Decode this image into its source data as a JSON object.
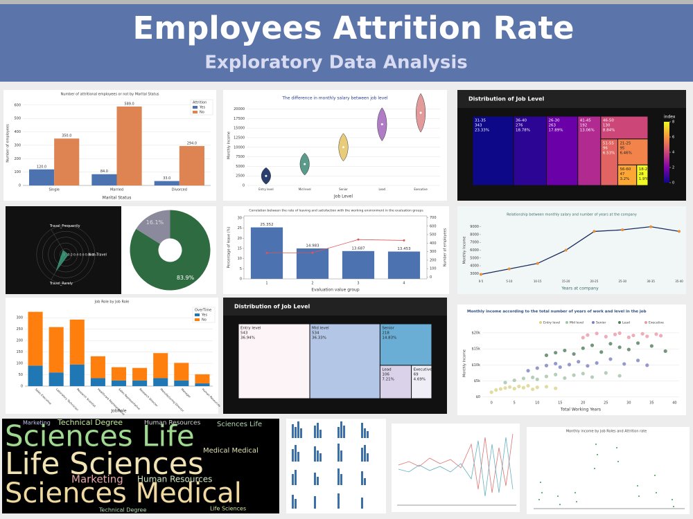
{
  "header": {
    "title": "Employees Attrition Rate",
    "subtitle": "Exploratory Data Analysis"
  },
  "chart_data": [
    {
      "type": "grouped-bar",
      "title": "Number of attritional employees or not by Marital Status",
      "xlabel": "Marital Status",
      "ylabel": "Number of employees",
      "legend_title": "Attrition",
      "categories": [
        "Single",
        "Married",
        "Divorced"
      ],
      "series": [
        {
          "name": "Yes",
          "color": "#4c72b0",
          "values": [
            120,
            84,
            33
          ],
          "value_labels": [
            "120.0",
            "84.0",
            "33.0"
          ]
        },
        {
          "name": "No",
          "color": "#dd8452",
          "values": [
            350,
            589,
            294
          ],
          "value_labels": [
            "350.0",
            "589.0",
            "294.0"
          ]
        }
      ],
      "ylim": [
        0,
        630
      ],
      "yticks": [
        0,
        100,
        200,
        300,
        400,
        500,
        600
      ],
      "grid": true
    },
    {
      "type": "violin",
      "title": "The difference in monthly salary between job level",
      "xlabel": "Job Level",
      "ylabel": "Monthly Income",
      "categories": [
        "Entry level",
        "Mid level",
        "Senior",
        "Lead",
        "Executive"
      ],
      "values": [
        2500,
        5600,
        10000,
        16000,
        19000
      ],
      "colors": [
        "#2a3f6e",
        "#5a9a8a",
        "#e8cc7a",
        "#b07cc6",
        "#e39a9a"
      ],
      "ylim": [
        0,
        21000
      ],
      "yticks": [
        0,
        2500,
        5000,
        7500,
        10000,
        12500,
        15000,
        17500,
        20000
      ],
      "grid": true
    },
    {
      "type": "treemap",
      "title": "Distribution of Job Level",
      "categories": [
        "31-35",
        "36-40",
        "26-30",
        "41-45",
        "46-50",
        "51-55",
        "21-25",
        "56-60",
        "18-20"
      ],
      "values": [
        343,
        276,
        263,
        192,
        130,
        96,
        95,
        47,
        28
      ],
      "value_labels": [
        "23.33%",
        "18.78%",
        "17.89%",
        "13.06%",
        "8.84%",
        "6.53%",
        "6.46%",
        "3.2%",
        "1.9%"
      ],
      "colors": [
        "#0d0887",
        "#2c0594",
        "#6a00a8",
        "#b12a90",
        "#cc4778",
        "#e16462",
        "#f2844b",
        "#fca636",
        "#f0f921"
      ],
      "colorbar_title": "index",
      "clim": [
        0,
        8
      ],
      "cticks": [
        0,
        2,
        4,
        6,
        8
      ]
    },
    {
      "type": "radar",
      "categories": [
        "Non-Travel",
        "Travel_Frequently",
        "Travel_Rarely"
      ],
      "values": [
        0.1,
        0.19,
        0.71
      ],
      "color": "#3aa27f",
      "rlim": [
        0,
        1
      ],
      "rticks": [
        0,
        0.2,
        0.4,
        0.6,
        0.8,
        1
      ]
    },
    {
      "type": "pie",
      "values": [
        83.9,
        16.1
      ],
      "value_labels": [
        "83.9%",
        "16.1%"
      ],
      "colors": [
        "#2f6b40",
        "#8a8a9c"
      ]
    },
    {
      "type": "bar-line",
      "title": "Correlation between the rate of leaving and satisfaction with the working environment in the evaluation groups",
      "xlabel": "Evaluation value group",
      "ylabel": "Percentage of leave (%)",
      "y2label": "Number of employees",
      "categories": [
        "1",
        "2",
        "3",
        "4"
      ],
      "series": [
        {
          "type": "bar",
          "color": "#4c72b0",
          "values": [
            25.352,
            14.983,
            13.687,
            13.453
          ]
        },
        {
          "type": "line",
          "axis": "y2",
          "color": "#e05555",
          "values": [
            284,
            287,
            442,
            432
          ]
        }
      ],
      "ylim": [
        0,
        31
      ],
      "yticks": [
        0,
        5,
        10,
        15,
        20,
        25,
        30
      ],
      "y2lim": [
        -20,
        720
      ],
      "y2ticks": [
        0,
        100,
        200,
        300,
        400,
        500,
        600,
        700
      ]
    },
    {
      "type": "line",
      "title": "Relationship between monthly salary and number of years at the company",
      "xlabel": "Years at company",
      "ylabel": "Monthly Income",
      "categories": [
        "0-5",
        "5-10",
        "10-15",
        "15-20",
        "20-25",
        "25-30",
        "30-35",
        "35-40"
      ],
      "values": [
        2900,
        3600,
        4300,
        6000,
        8400,
        8600,
        9000,
        8400
      ],
      "color": "#1a2a5e",
      "marker_color": "#e69138",
      "ylim": [
        2500,
        9500
      ],
      "yticks": [
        3000,
        4000,
        5000,
        6000,
        7000,
        8000,
        9000
      ]
    },
    {
      "type": "stacked-bar",
      "title": "Job Role by Job Role",
      "xlabel": "JobRole",
      "legend_title": "OverTime",
      "categories": [
        "Sales Executive",
        "Laboratory Technician",
        "Research Scientist",
        "Healthcare Representative",
        "Sales Representative",
        "Research Director",
        "Manufacturing Director",
        "Manager",
        "Human Resources"
      ],
      "series": [
        {
          "name": "Yes",
          "color": "#1f77b4",
          "values": [
            90,
            60,
            95,
            35,
            25,
            25,
            35,
            25,
            12
          ]
        },
        {
          "name": "No",
          "color": "#ff7f0e",
          "values": [
            236,
            199,
            197,
            96,
            58,
            55,
            110,
            77,
            40
          ]
        }
      ],
      "ylim": [
        0,
        340
      ],
      "yticks": [
        0,
        50,
        100,
        150,
        200,
        250,
        300
      ],
      "grid": true
    },
    {
      "type": "treemap",
      "title": "Distribution of Job Level",
      "categories": [
        "Entry level",
        "Mid level",
        "Senior",
        "Lead",
        "Executive"
      ],
      "values": [
        543,
        534,
        218,
        106,
        69
      ],
      "value_labels": [
        "36.94%",
        "36.33%",
        "14.83%",
        "7.21%",
        "4.69%"
      ],
      "colors": [
        "#fdf4f8",
        "#b3c6e6",
        "#6aaed6",
        "#d9d2e9",
        "#efedf6"
      ]
    },
    {
      "type": "scatter",
      "title": "Monthly income according to the total number of years of work and level in the job",
      "xlabel": "Total Working Years",
      "ylabel": "Monthly Income",
      "series": [
        {
          "name": "Entry level",
          "color": "#d9d38a",
          "x": [
            0,
            1,
            2,
            3,
            4,
            5,
            6,
            7,
            8,
            9,
            10,
            12,
            14
          ],
          "values": [
            1500,
            2200,
            2500,
            2800,
            3100,
            2600,
            3300,
            2900,
            3500,
            2400,
            3000,
            3200,
            2700
          ]
        },
        {
          "name": "Mid level",
          "color": "#a3c2a8",
          "x": [
            3,
            5,
            7,
            9,
            10,
            12,
            14,
            16,
            18,
            20,
            22,
            25,
            28
          ],
          "values": [
            4500,
            5200,
            5800,
            6100,
            5500,
            6400,
            7000,
            5900,
            6800,
            7300,
            6200,
            7500,
            6600
          ]
        },
        {
          "name": "Senior",
          "color": "#7c80c0",
          "x": [
            8,
            10,
            12,
            14,
            15,
            17,
            19,
            21,
            23,
            26,
            29,
            32,
            34
          ],
          "values": [
            8200,
            9000,
            9800,
            10400,
            9300,
            10100,
            11000,
            9700,
            10600,
            11800,
            10300,
            11400,
            9900
          ]
        },
        {
          "name": "Lead",
          "color": "#4f7d5c",
          "x": [
            12,
            14,
            16,
            18,
            20,
            22,
            24,
            26,
            28,
            30,
            32,
            35,
            38
          ],
          "values": [
            13000,
            13800,
            14500,
            13400,
            15200,
            16100,
            14000,
            16600,
            15500,
            14800,
            16800,
            15900,
            14300
          ]
        },
        {
          "name": "Executive",
          "color": "#e89aa8",
          "x": [
            20,
            21,
            23,
            25,
            27,
            28,
            30,
            31,
            33,
            34,
            36,
            37
          ],
          "values": [
            18500,
            19300,
            19800,
            18800,
            19500,
            19900,
            18600,
            19200,
            19700,
            18900,
            19600,
            19100
          ]
        }
      ],
      "xlim": [
        -2,
        41
      ],
      "xticks": [
        0,
        5,
        10,
        15,
        20,
        25,
        30,
        35,
        40
      ],
      "ylim": [
        -500,
        21500
      ],
      "yticks": [
        {
          "value": 0,
          "label": "$0"
        },
        {
          "value": 5000,
          "label": "$5k"
        },
        {
          "value": 10000,
          "label": "$10k"
        },
        {
          "value": 15000,
          "label": "$15k"
        },
        {
          "value": 20000,
          "label": "$20k"
        }
      ]
    },
    {
      "type": "wordcloud",
      "words": [
        "Sciences Life",
        "Life Sciences",
        "Sciences Medical",
        "Technical Degree",
        "Human Resources",
        "Marketing",
        "Human Resources",
        "Medical Medical",
        "Technical Degree",
        "Life Sciences",
        "Marketing",
        "Sciences Life"
      ],
      "colors": [
        "#9ed98f",
        "#f2e3b3",
        "#f0d9a0",
        "#c7e9a0",
        "#d8d8d8",
        "#e7a6a6",
        "#cfe8c0",
        "#e0e0b0",
        "#b0e0b0",
        "#d0e8a0",
        "#c0c0f0",
        "#b8d8b8"
      ]
    }
  ],
  "thumbnails": {
    "strip_title": "Monthly income by Job Roles and Attrition rate"
  }
}
